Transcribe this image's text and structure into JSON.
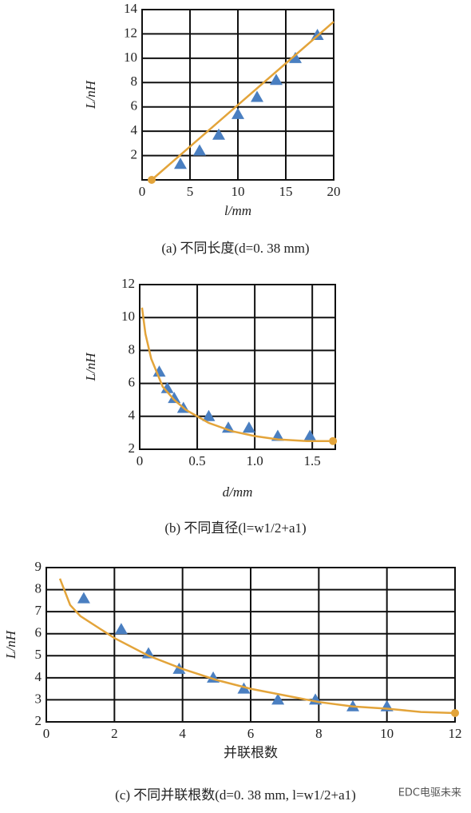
{
  "chart_data": [
    {
      "type": "scatter",
      "caption": "(a) 不同长度(d=0. 38 mm)",
      "x_label": "l/mm",
      "y_label": "L/nH",
      "xlim": [
        0,
        20
      ],
      "xticks": [
        0,
        5,
        10,
        15,
        20
      ],
      "ylim": [
        0,
        14
      ],
      "yticks": [
        2,
        4,
        6,
        8,
        10,
        12,
        14
      ],
      "grid": true,
      "series": [
        {
          "color": "#4a7fc1",
          "marker": "triangle",
          "x": [
            4,
            6,
            8,
            10,
            12,
            14,
            16,
            18.3
          ],
          "values": [
            1.3,
            2.4,
            3.7,
            5.4,
            6.8,
            8.2,
            10,
            11.9
          ]
        },
        {
          "color": "#e3a43a",
          "marker": "line",
          "x": [
            1,
            20
          ],
          "values": [
            0,
            13
          ]
        },
        {
          "color": "#e3a43a",
          "marker": "circle",
          "x": [
            1
          ],
          "values": [
            0
          ]
        }
      ]
    },
    {
      "type": "scatter",
      "caption": "(b) 不同直径(l=w1/2+a1)",
      "x_label": "d/mm",
      "y_label": "L/nH",
      "xlim": [
        0,
        1.7
      ],
      "xticks": [
        0,
        0.5,
        {
          "value": 1,
          "label": "1.0"
        },
        1.5
      ],
      "ylim": [
        2,
        12
      ],
      "yticks": [
        2,
        4,
        6,
        8,
        10,
        12
      ],
      "grid": true,
      "series": [
        {
          "color": "#4a7fc1",
          "marker": "triangle",
          "x": [
            0.17,
            0.24,
            0.3,
            0.38,
            0.6,
            0.77,
            0.95,
            1.2,
            1.48
          ],
          "values": [
            6.7,
            5.7,
            5.1,
            4.5,
            4.0,
            3.3,
            3.3,
            2.8,
            2.8
          ]
        },
        {
          "color": "#e3a43a",
          "marker": "line",
          "x": [
            0.02,
            0.05,
            0.1,
            0.2,
            0.3,
            0.4,
            0.6,
            0.8,
            1.0,
            1.2,
            1.45,
            1.68
          ],
          "values": [
            10.6,
            9,
            7.5,
            5.8,
            5,
            4.4,
            3.6,
            3.1,
            2.8,
            2.6,
            2.5,
            2.5
          ]
        },
        {
          "color": "#e3a43a",
          "marker": "circle",
          "x": [
            1.68
          ],
          "values": [
            2.5
          ]
        }
      ]
    },
    {
      "type": "scatter",
      "caption": "(c) 不同并联根数(d=0. 38 mm, l=w1/2+a1)",
      "x_label": "并联根数",
      "y_label": "L/nH",
      "xlim": [
        0,
        12
      ],
      "xticks": [
        0,
        2,
        4,
        6,
        8,
        10,
        12
      ],
      "ylim": [
        2,
        9
      ],
      "yticks": [
        2,
        3,
        4,
        5,
        6,
        7,
        8,
        9
      ],
      "grid": true,
      "series": [
        {
          "color": "#4a7fc1",
          "marker": "triangle",
          "x": [
            1.1,
            2.2,
            3,
            3.9,
            4.9,
            5.8,
            6.8,
            7.9,
            9,
            10
          ],
          "values": [
            7.6,
            6.2,
            5.1,
            4.4,
            4.0,
            3.5,
            3.0,
            3.0,
            2.7,
            2.7
          ]
        },
        {
          "color": "#e3a43a",
          "marker": "line",
          "x": [
            0.4,
            0.7,
            1,
            2,
            3,
            4,
            5,
            6,
            7,
            8,
            9,
            10,
            11,
            12
          ],
          "values": [
            8.5,
            7.3,
            6.8,
            5.8,
            5.0,
            4.4,
            3.9,
            3.5,
            3.2,
            2.9,
            2.7,
            2.6,
            2.45,
            2.4
          ]
        },
        {
          "color": "#e3a43a",
          "marker": "circle",
          "x": [
            12
          ],
          "values": [
            2.4
          ]
        }
      ]
    }
  ],
  "watermark": "EDC电驱未来"
}
